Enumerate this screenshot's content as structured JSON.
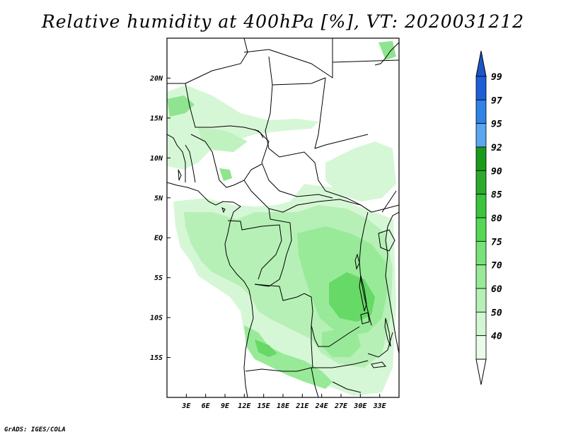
{
  "title": "Relative humidity at 400hPa [%], VT: 2020031212",
  "credit": "GrADS: IGES/COLA",
  "map": {
    "lon_range": [
      0,
      36
    ],
    "lat_range": [
      -20,
      25
    ],
    "lat_ticks": [
      {
        "value": 20,
        "label": "20N"
      },
      {
        "value": 15,
        "label": "15N"
      },
      {
        "value": 10,
        "label": "10N"
      },
      {
        "value": 5,
        "label": "5N"
      },
      {
        "value": 0,
        "label": "EQ"
      },
      {
        "value": -5,
        "label": "5S"
      },
      {
        "value": -10,
        "label": "10S"
      },
      {
        "value": -15,
        "label": "15S"
      }
    ],
    "lon_ticks": [
      {
        "value": 3,
        "label": "3E"
      },
      {
        "value": 6,
        "label": "6E"
      },
      {
        "value": 9,
        "label": "9E"
      },
      {
        "value": 12,
        "label": "12E"
      },
      {
        "value": 15,
        "label": "15E"
      },
      {
        "value": 18,
        "label": "18E"
      },
      {
        "value": 21,
        "label": "21E"
      },
      {
        "value": 24,
        "label": "24E"
      },
      {
        "value": 27,
        "label": "27E"
      },
      {
        "value": 30,
        "label": "30E"
      },
      {
        "value": 33,
        "label": "33E"
      }
    ]
  },
  "colorbar": {
    "levels": [
      {
        "label": "99",
        "color": "#1e5ed8"
      },
      {
        "label": "97",
        "color": "#2f82e6"
      },
      {
        "label": "95",
        "color": "#5aa6f0"
      },
      {
        "label": "92",
        "color": "#1a9a1a"
      },
      {
        "label": "90",
        "color": "#2daa2d"
      },
      {
        "label": "85",
        "color": "#3cc43c"
      },
      {
        "label": "80",
        "color": "#55d855"
      },
      {
        "label": "75",
        "color": "#78e278"
      },
      {
        "label": "70",
        "color": "#98ea98"
      },
      {
        "label": "60",
        "color": "#b6f0b6"
      },
      {
        "label": "50",
        "color": "#d2f6d2"
      },
      {
        "label": "40",
        "color": "#eafbea"
      }
    ],
    "top_arrow_color": "#1b56c8",
    "bottom_arrow_color": "#ffffff"
  },
  "humidity_fields": [
    {
      "level": 60,
      "color": "#c6f3c6",
      "area": "gulf-of-guinea-and-congo-basin"
    },
    {
      "level": 70,
      "color": "#98ea98",
      "area": "eastern-congo-zambia"
    },
    {
      "level": 80,
      "color": "#55d855",
      "area": "lake-tanganyika-region"
    },
    {
      "level": 60,
      "color": "#c6f3c6",
      "area": "sahel-west"
    }
  ]
}
